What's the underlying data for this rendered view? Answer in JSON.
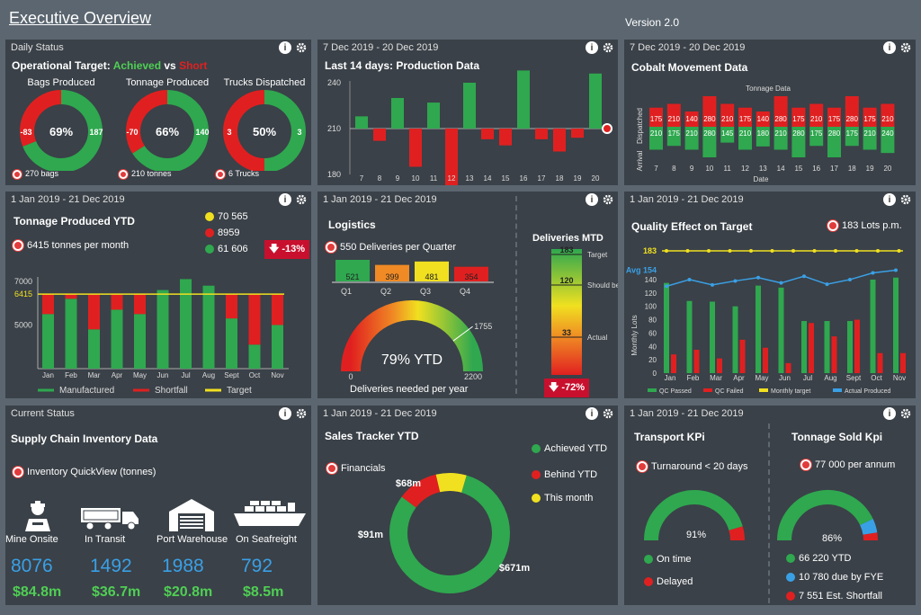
{
  "header": {
    "title": "Executive Overview",
    "version": "Version 2.0"
  },
  "colors": {
    "green": "#2fa84f",
    "red": "#e02020",
    "yellow": "#f0e020",
    "blue": "#3aa0e6",
    "panel": "#3a4148"
  },
  "daily": {
    "period": "Daily Status",
    "title_prefix": "Operational Target: ",
    "achieved": "Achieved",
    "vs": " vs ",
    "short": "Short",
    "donuts": [
      {
        "label": "Bags Produced",
        "pct": 69,
        "pct_text": "69%",
        "short": "-83",
        "ach": "187",
        "foot": "270 bags"
      },
      {
        "label": "Tonnage Produced",
        "pct": 66,
        "pct_text": "66%",
        "short": "-70",
        "ach": "140",
        "foot": "210 tonnes"
      },
      {
        "label": "Trucks Dispatched",
        "pct": 50,
        "pct_text": "50%",
        "short": "3",
        "ach": "3",
        "foot": "6 Trucks"
      }
    ]
  },
  "production": {
    "period": "7 Dec 2019 - 20 Dec 2019",
    "title": "Last 14 days:  Production Data",
    "chart_data": {
      "type": "bar",
      "x": [
        "7",
        "8",
        "9",
        "10",
        "11",
        "12",
        "13",
        "14",
        "15",
        "16",
        "17",
        "18",
        "19",
        "20"
      ],
      "values": [
        218,
        202,
        230,
        185,
        227,
        172,
        240,
        203,
        199,
        248,
        203,
        195,
        204,
        246
      ],
      "baseline": 210,
      "ylim": [
        180,
        240
      ],
      "yticks": [
        "240",
        "210",
        "180"
      ]
    }
  },
  "cobalt": {
    "period": "7 Dec 2019 - 20 Dec 2019",
    "title": "Cobalt Movement Data",
    "series_label": "Tonnage Data",
    "y_top": "Dispatched",
    "y_bottom": "Arrival",
    "xlabel": "Date",
    "chart_data": {
      "type": "bar",
      "x": [
        "7",
        "8",
        "9",
        "10",
        "11",
        "12",
        "13",
        "14",
        "15",
        "16",
        "17",
        "18",
        "19",
        "20"
      ],
      "dispatched": [
        "175",
        "210",
        "140",
        "280",
        "210",
        "175",
        "140",
        "280",
        "175",
        "210",
        "175",
        "280",
        "175",
        "210"
      ],
      "arrival": [
        "210",
        "175",
        "210",
        "280",
        "145",
        "210",
        "180",
        "210",
        "280",
        "175",
        "280",
        "175",
        "210",
        "240"
      ]
    }
  },
  "tonnage_ytd": {
    "period": "1 Jan 2019 - 21 Dec 2019",
    "title": "Tonnage Produced YTD",
    "subtitle": "6415 tonnes per month",
    "badge": "-13%",
    "legend_values": [
      "70 565",
      "8959",
      "61 606"
    ],
    "target_label": "6415",
    "yticks": [
      "7000",
      "5000"
    ],
    "legend": [
      "Manufactured",
      "Shortfall",
      "Target"
    ],
    "chart_data": {
      "type": "bar",
      "categories": [
        "Jan",
        "Feb",
        "Mar",
        "Apr",
        "May",
        "Jun",
        "Jul",
        "Aug",
        "Sept",
        "Oct",
        "Nov"
      ],
      "manufactured": [
        5500,
        6200,
        4800,
        5700,
        5500,
        6600,
        7100,
        6800,
        5300,
        4100,
        5000
      ],
      "shortfall": [
        900,
        200,
        1600,
        700,
        900,
        0,
        0,
        0,
        1100,
        2300,
        1400
      ],
      "target": 6415,
      "ylim": [
        3000,
        7200
      ]
    }
  },
  "logistics": {
    "period": "1 Jan 2019 - 21 Dec 2019",
    "title": "Logistics",
    "subtitle": "550 Deliveries per Quarter",
    "quarters": [
      {
        "q": "Q1",
        "v": "521",
        "color": "#2fa84f"
      },
      {
        "q": "Q2",
        "v": "399",
        "color": "#f08a24"
      },
      {
        "q": "Q3",
        "v": "481",
        "color": "#f0e020"
      },
      {
        "q": "Q4",
        "v": "354",
        "color": "#e02020"
      }
    ],
    "gauge": {
      "value_text": "79% YTD",
      "pct": 79,
      "min": "0",
      "max": "2200",
      "marker": "1755",
      "caption": "Deliveries needed per year"
    },
    "mtd": {
      "title": "Deliveries MTD",
      "target": "183",
      "should": "120",
      "actual": "33",
      "target_label": "Target",
      "should_label": "Should be",
      "actual_label": "Actual",
      "badge": "-72%"
    }
  },
  "quality": {
    "period": "1 Jan 2019 - 21 Dec 2019",
    "title": "Quality Effect on Target",
    "lots": "183 Lots p.m.",
    "target_label": "183",
    "avg_label": "Avg 154",
    "ylabel": "Monthly Lots",
    "yticks": [
      "140",
      "120",
      "100",
      "80",
      "60",
      "40",
      "20",
      "0"
    ],
    "legend": [
      "QC Passed",
      "QC Failed",
      "Monthly target",
      "Actual Produced"
    ],
    "chart_data": {
      "type": "bar",
      "categories": [
        "Jan",
        "Feb",
        "Mar",
        "Apr",
        "May",
        "Jun",
        "Jul",
        "Aug",
        "Sept",
        "Oct",
        "Nov"
      ],
      "passed": [
        135,
        108,
        107,
        100,
        131,
        128,
        78,
        78,
        78,
        140,
        143
      ],
      "failed": [
        28,
        35,
        22,
        50,
        38,
        15,
        75,
        55,
        80,
        30,
        30
      ],
      "actual": [
        130,
        140,
        132,
        138,
        143,
        135,
        145,
        133,
        140,
        150,
        154
      ],
      "target": 183,
      "ylim": [
        0,
        183
      ]
    }
  },
  "current": {
    "period": "Current Status",
    "title": "Supply Chain Inventory Data",
    "subtitle": "Inventory QuickView (tonnes)",
    "items": [
      {
        "label": "Mine Onsite",
        "value": "8076",
        "money": "$84.8m",
        "icon": "miner-icon"
      },
      {
        "label": "In Transit",
        "value": "1492",
        "money": "$36.7m",
        "icon": "truck-icon"
      },
      {
        "label": "Port Warehouse",
        "value": "1988",
        "money": "$20.8m",
        "icon": "warehouse-icon"
      },
      {
        "label": "On Seafreight",
        "value": "792",
        "money": "$8.5m",
        "icon": "ship-icon"
      }
    ]
  },
  "sales": {
    "period": "1 Jan 2019 - 21 Dec 2019",
    "title": "Sales Tracker YTD",
    "subtitle": "Financials",
    "legend": [
      "Achieved YTD",
      "Behind  YTD",
      "This month"
    ],
    "chart_data": {
      "type": "pie",
      "labels": [
        "Achieved YTD",
        "Behind YTD",
        "This month"
      ],
      "values": [
        671,
        91,
        68
      ],
      "value_labels": [
        "$671m",
        "$91m",
        "$68m"
      ]
    }
  },
  "transport": {
    "period": "1 Jan 2019 - 21 Dec 2019",
    "title": "Transport KPi",
    "subtitle": "Turnaround < 20 days",
    "pct": "91%",
    "pct_value": 91,
    "legend": [
      "On time",
      "Delayed"
    ]
  },
  "tonnage_sold": {
    "title": "Tonnage Sold Kpi",
    "subtitle": "77 000 per annum",
    "pct": "86%",
    "legend": [
      "66 220 YTD",
      "10 780  due by FYE",
      "7 551 Est. Shortfall"
    ]
  }
}
